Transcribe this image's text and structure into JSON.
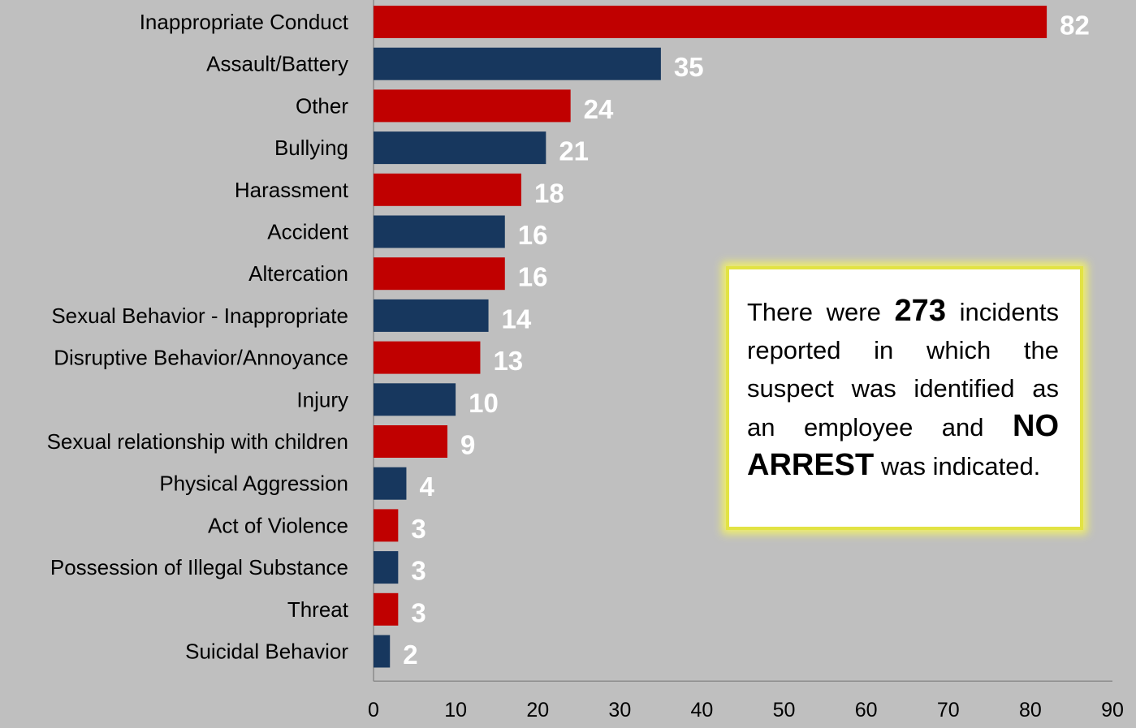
{
  "chart_data": {
    "type": "bar",
    "orientation": "horizontal",
    "categories": [
      "Inappropriate Conduct",
      "Assault/Battery",
      "Other",
      "Bullying",
      "Harassment ",
      "Accident",
      "Altercation",
      "Sexual Behavior - Inappropriate ",
      "Disruptive Behavior/Annoyance",
      "Injury",
      "Sexual relationship with children",
      "Physical Aggression",
      "Act of Violence",
      "Possession of Illegal Substance ",
      "Threat",
      "Suicidal Behavior "
    ],
    "values": [
      82,
      35,
      24,
      21,
      18,
      16,
      16,
      14,
      13,
      10,
      9,
      4,
      3,
      3,
      3,
      2
    ],
    "bar_colors": [
      "#c00000",
      "#17375e"
    ],
    "xlim": [
      0,
      90
    ],
    "xticks": [
      0,
      10,
      20,
      30,
      40,
      50,
      60,
      70,
      80,
      90
    ],
    "title": "",
    "xlabel": "",
    "ylabel": "",
    "grid": false,
    "legend": "none"
  },
  "callout": {
    "part1": "There were ",
    "count": "273",
    "part2": " incidents reported in which the suspect was identified as an employee and ",
    "emphasis": "NO ARREST",
    "part3": " was indicated."
  }
}
